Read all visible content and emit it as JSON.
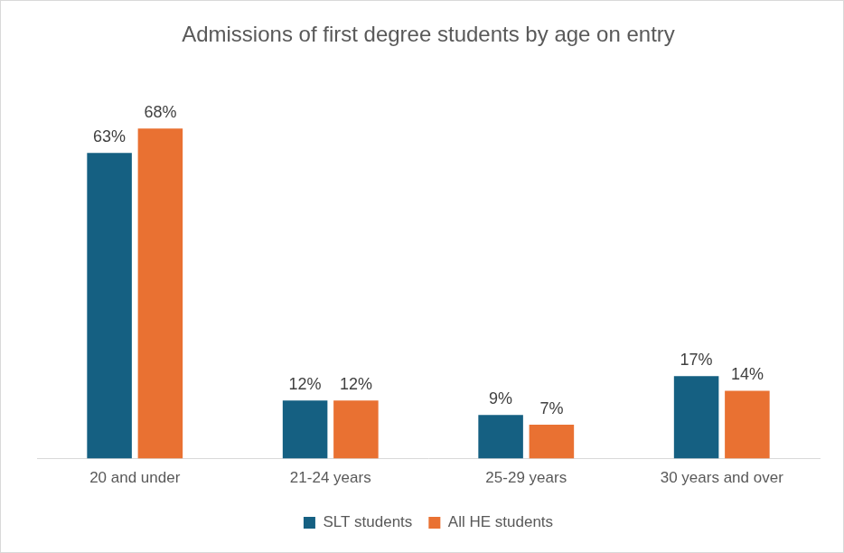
{
  "chart_data": {
    "type": "bar",
    "title": "Admissions of first degree students by age on entry",
    "categories": [
      "20 and under",
      "21-24 years",
      "25-29 years",
      "30 years and over"
    ],
    "series": [
      {
        "name": "SLT students",
        "color": "#156082",
        "values": [
          63,
          12,
          9,
          17
        ],
        "value_labels": [
          "63%",
          "12%",
          "9%",
          "17%"
        ]
      },
      {
        "name": "All HE students",
        "color": "#e97132",
        "values": [
          68,
          12,
          7,
          14
        ],
        "value_labels": [
          "68%",
          "12%",
          "7%",
          "14%"
        ]
      }
    ],
    "ylim": [
      0,
      80
    ],
    "grid": false,
    "legend": "bottom",
    "data_labels": true,
    "tick_labels": "x"
  }
}
